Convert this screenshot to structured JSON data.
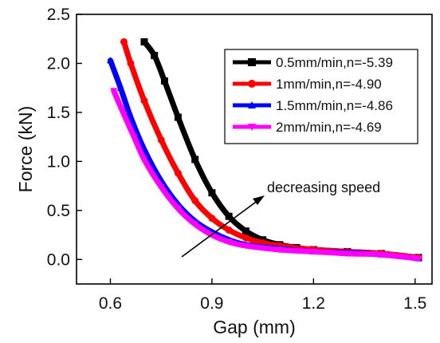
{
  "chart_data": {
    "type": "line",
    "xlabel": "Gap (mm)",
    "ylabel": "Force (kN)",
    "xlim": [
      0.5,
      1.55
    ],
    "ylim": [
      -0.25,
      2.5
    ],
    "xticks": [
      "0.6",
      "0.9",
      "1.2",
      "1.5"
    ],
    "yticks": [
      "0.0",
      "0.5",
      "1.0",
      "1.5",
      "2.0",
      "2.5"
    ],
    "legend_position": "top-right",
    "annotation": "decreasing speed",
    "series": [
      {
        "name": "0.5mm/min,n=-5.39",
        "color": "#000000",
        "marker": "square",
        "x": [
          0.7,
          0.73,
          0.76,
          0.8,
          0.85,
          0.9,
          0.95,
          1.0,
          1.05,
          1.1,
          1.15,
          1.2,
          1.3,
          1.4,
          1.51
        ],
        "y": [
          2.22,
          2.08,
          1.82,
          1.45,
          1.02,
          0.68,
          0.44,
          0.29,
          0.2,
          0.15,
          0.12,
          0.1,
          0.08,
          0.06,
          0.02
        ]
      },
      {
        "name": "1mm/min,n=-4.90",
        "color": "#ff0000",
        "marker": "circle",
        "x": [
          0.64,
          0.66,
          0.7,
          0.75,
          0.8,
          0.85,
          0.9,
          0.95,
          1.0,
          1.05,
          1.1,
          1.2,
          1.3,
          1.4,
          1.51
        ],
        "y": [
          2.22,
          2.0,
          1.62,
          1.22,
          0.88,
          0.6,
          0.42,
          0.3,
          0.22,
          0.17,
          0.14,
          0.1,
          0.08,
          0.06,
          0.02
        ]
      },
      {
        "name": "1.5mm/min,n=-4.86",
        "color": "#0000ff",
        "marker": "triangle-up",
        "x": [
          0.6,
          0.63,
          0.66,
          0.7,
          0.75,
          0.8,
          0.85,
          0.9,
          0.95,
          1.0,
          1.1,
          1.2,
          1.3,
          1.4,
          1.51
        ],
        "y": [
          2.03,
          1.75,
          1.45,
          1.12,
          0.8,
          0.56,
          0.39,
          0.28,
          0.2,
          0.15,
          0.11,
          0.08,
          0.07,
          0.05,
          0.01
        ]
      },
      {
        "name": "2mm/min,n=-4.69",
        "color": "#ff00ff",
        "marker": "triangle-down",
        "x": [
          0.61,
          0.64,
          0.67,
          0.7,
          0.75,
          0.8,
          0.85,
          0.9,
          0.95,
          1.0,
          1.1,
          1.2,
          1.3,
          1.4,
          1.51
        ],
        "y": [
          1.72,
          1.48,
          1.25,
          1.02,
          0.74,
          0.52,
          0.36,
          0.25,
          0.18,
          0.14,
          0.1,
          0.08,
          0.06,
          0.05,
          0.01
        ]
      }
    ]
  }
}
